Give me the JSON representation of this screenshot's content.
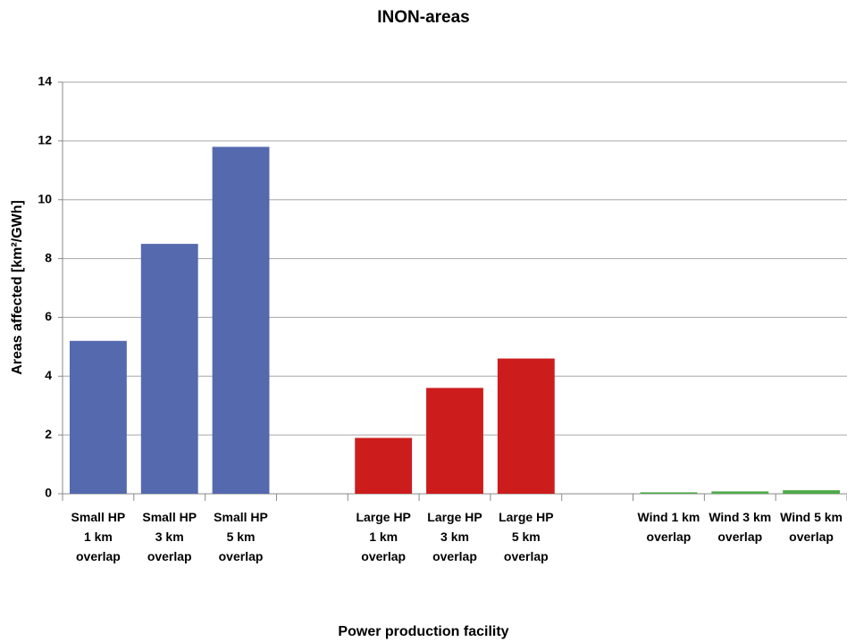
{
  "chart_data": {
    "type": "bar",
    "title": "INON-areas",
    "x_label": "Power production facility",
    "y_label": "Areas affected [km²/GWh]",
    "categories": [
      "Small HP 1 km overlap",
      "Small HP 3 km overlap",
      "Small HP 5 km overlap",
      null,
      "Large HP 1 km overlap",
      "Large HP 3 km overlap",
      "Large HP 5 km overlap",
      null,
      "Wind 1 km overlap",
      "Wind 3 km overlap",
      "Wind 5 km overlap"
    ],
    "values": [
      5.2,
      8.5,
      11.8,
      null,
      1.9,
      3.6,
      4.6,
      null,
      0.05,
      0.08,
      0.12
    ],
    "colors": [
      "#5469ae",
      "#5469ae",
      "#5469ae",
      null,
      "#cc1c1c",
      "#cc1c1c",
      "#cc1c1c",
      null,
      "#4faa4a",
      "#4faa4a",
      "#4faa4a"
    ],
    "ylim": [
      0,
      14
    ],
    "yticks": [
      0,
      2,
      4,
      6,
      8,
      10,
      12,
      14
    ],
    "grid": true
  }
}
